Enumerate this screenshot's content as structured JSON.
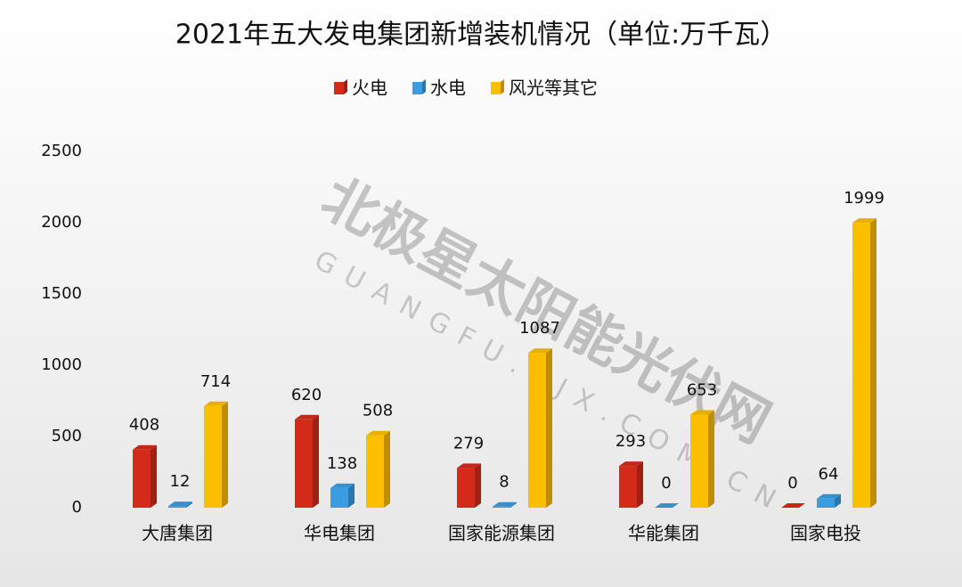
{
  "chart_data": {
    "type": "bar",
    "title": "2021年五大发电集团新增装机情况（单位:万千瓦）",
    "watermark": "北极星太阳能光伏网",
    "watermark_url": "GUANGFU.BJX.COM.CN",
    "categories": [
      "大唐集团",
      "华电集团",
      "国家能源集团",
      "华能集团",
      "国家电投"
    ],
    "series": [
      {
        "name": "火电",
        "color": "#d42a1a",
        "values": [
          408,
          620,
          279,
          293,
          0
        ]
      },
      {
        "name": "水电",
        "color": "#3a9de2",
        "values": [
          12,
          138,
          8,
          0,
          64
        ]
      },
      {
        "name": "风光等其它",
        "color": "#fcbf00",
        "values": [
          714,
          508,
          1087,
          653,
          1999
        ]
      }
    ],
    "ylim": [
      0,
      2500
    ],
    "yticks": [
      0,
      500,
      1000,
      1500,
      2000,
      2500
    ],
    "grid": false,
    "legend": "top"
  }
}
